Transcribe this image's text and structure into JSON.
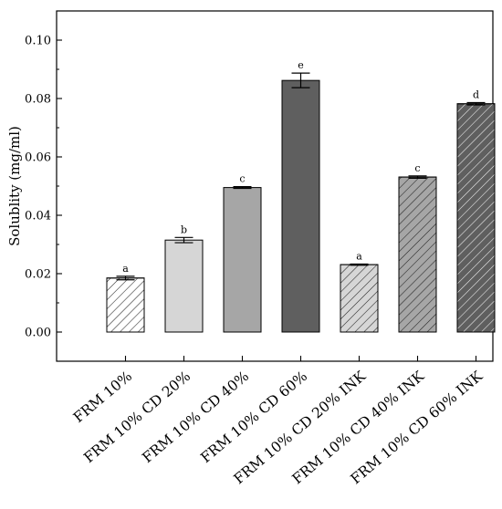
{
  "chart_data": {
    "type": "bar",
    "title": "",
    "xlabel": "",
    "ylabel": "Solublity (mg/ml)",
    "ylim": [
      -0.01,
      0.11
    ],
    "yticks": [
      "0.00",
      "0.02",
      "0.04",
      "0.06",
      "0.08",
      "0.10"
    ],
    "grid": false,
    "categories": [
      "FRM 10%",
      "FRM 10% CD 20%",
      "FRM 10% CD 40%",
      "FRM 10% CD 60%",
      "FRM 10% CD 20% INK",
      "FRM 10% CD 40% INK",
      "FRM 10% CD 60% INK"
    ],
    "values": [
      0.0185,
      0.0315,
      0.0495,
      0.0862,
      0.0231,
      0.0531,
      0.0782
    ],
    "errors": [
      0.0006,
      0.0009,
      0.0003,
      0.0025,
      0.0002,
      0.0004,
      0.0004
    ],
    "significance_labels": [
      "a",
      "b",
      "c",
      "e",
      "a",
      "c",
      "d"
    ],
    "bar_fills": [
      "#ffffff",
      "#d6d6d6",
      "#a6a6a6",
      "#5f5f5f",
      "#d6d6d6",
      "#a6a6a6",
      "#5f5f5f"
    ],
    "bar_hatched": [
      true,
      false,
      false,
      false,
      true,
      true,
      true
    ]
  }
}
